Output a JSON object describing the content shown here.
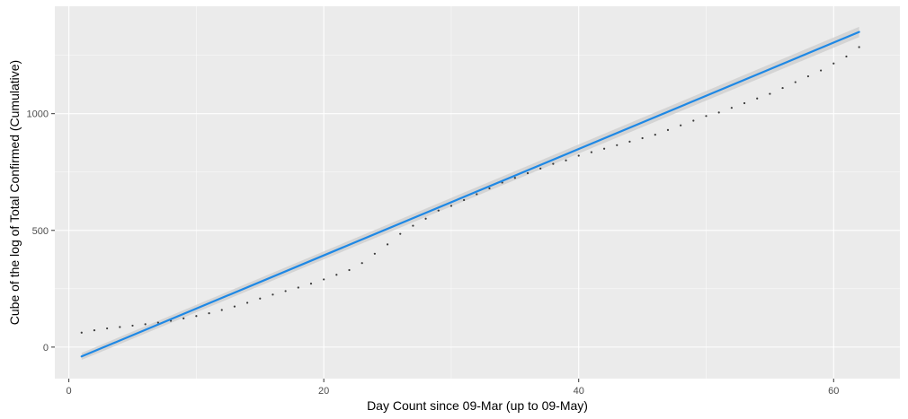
{
  "chart_data": {
    "type": "scatter",
    "title": "",
    "xlabel": "Day Count since 09-Mar (up to 09-May)",
    "ylabel": "Cube of the log of Total Confirmed (Cumulative)",
    "xlim": [
      -1.1,
      65.2
    ],
    "ylim": [
      -135,
      1460
    ],
    "xticks": [
      0,
      20,
      40,
      60
    ],
    "xtick_labels": [
      "0",
      "20",
      "40",
      "60"
    ],
    "yticks": [
      0,
      500,
      1000
    ],
    "ytick_labels": [
      "0",
      "500",
      "1000"
    ],
    "grid": true,
    "legend": "none",
    "series": [
      {
        "kind": "points",
        "x": [
          1,
          2,
          3,
          4,
          5,
          6,
          7,
          8,
          9,
          10,
          11,
          12,
          13,
          14,
          15,
          16,
          17,
          18,
          19,
          20,
          21,
          22,
          23,
          24,
          25,
          26,
          27,
          28,
          29,
          30,
          31,
          32,
          33,
          34,
          35,
          36,
          37,
          38,
          39,
          40,
          41,
          42,
          43,
          44,
          45,
          46,
          47,
          48,
          49,
          50,
          51,
          52,
          53,
          54,
          55,
          56,
          57,
          58,
          59,
          60,
          61,
          62
        ],
        "y": [
          62,
          72,
          80,
          86,
          92,
          98,
          105,
          113,
          123,
          133,
          145,
          159,
          174,
          190,
          208,
          225,
          240,
          255,
          272,
          290,
          310,
          330,
          360,
          400,
          440,
          485,
          520,
          550,
          585,
          605,
          630,
          655,
          680,
          705,
          725,
          745,
          765,
          785,
          800,
          820,
          835,
          850,
          865,
          880,
          895,
          910,
          930,
          950,
          970,
          990,
          1005,
          1025,
          1045,
          1065,
          1085,
          1110,
          1135,
          1160,
          1185,
          1215,
          1245,
          1285
        ]
      },
      {
        "kind": "fit-line",
        "x": [
          1,
          62
        ],
        "y": [
          -40,
          1350
        ],
        "ci_halfwidth": [
          15,
          22
        ]
      }
    ]
  },
  "colors": {
    "panel_background": "#ebebeb",
    "grid_major": "#ffffff",
    "points": "#3a3a3a",
    "fit_line": "#1e88e5",
    "confidence_band": "#cccccc"
  }
}
